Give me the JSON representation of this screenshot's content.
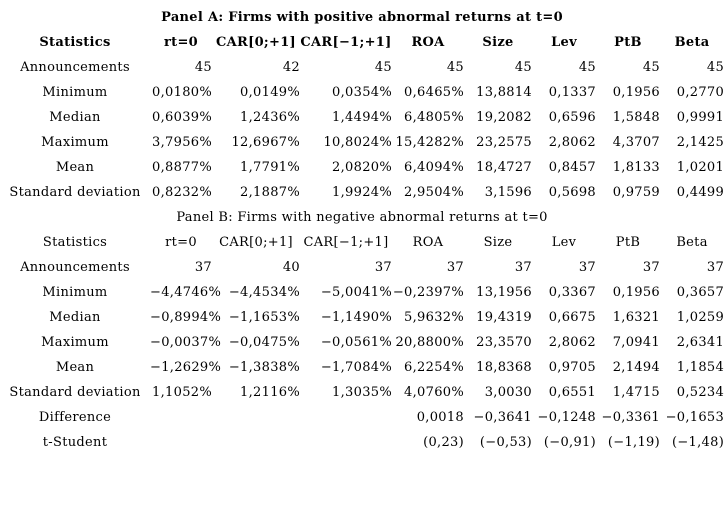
{
  "page": {
    "background_color": "#ffffff",
    "text_color": "#000000"
  },
  "panels": [
    {
      "name": "panel-a",
      "title": "Panel A: Firms with positive abnormal returns at t=0",
      "emphasis": "bold",
      "header": [
        "Statistics",
        "rt=0",
        "CAR[0;+1]",
        "CAR[−1;+1]",
        "ROA",
        "Size",
        "Lev",
        "PtB",
        "Beta"
      ],
      "rows": [
        {
          "label": "Announcements",
          "values": [
            "45",
            "42",
            "45",
            "45",
            "45",
            "45",
            "45",
            "45"
          ]
        },
        {
          "label": "Minimum",
          "values": [
            "0,0180%",
            "0,0149%",
            "0,0354%",
            "0,6465%",
            "13,8814",
            "0,1337",
            "0,1956",
            "0,2770"
          ]
        },
        {
          "label": "Median",
          "values": [
            "0,6039%",
            "1,2436%",
            "1,4494%",
            "6,4805%",
            "19,2082",
            "0,6596",
            "1,5848",
            "0,9991"
          ]
        },
        {
          "label": "Maximum",
          "values": [
            "3,7956%",
            "12,6967%",
            "10,8024%",
            "15,4282%",
            "23,2575",
            "2,8062",
            "4,3707",
            "2,1425"
          ]
        },
        {
          "label": "Mean",
          "values": [
            "0,8877%",
            "1,7791%",
            "2,0820%",
            "6,4094%",
            "18,4727",
            "0,8457",
            "1,8133",
            "1,0201"
          ]
        },
        {
          "label": "Standard deviation",
          "values": [
            "0,8232%",
            "2,1887%",
            "1,9924%",
            "2,9504%",
            "3,1596",
            "0,5698",
            "0,9759",
            "0,4499"
          ]
        }
      ]
    },
    {
      "name": "panel-b",
      "title": "Panel B: Firms with negative abnormal returns at t=0",
      "emphasis": "normal",
      "header": [
        "Statistics",
        "rt=0",
        "CAR[0;+1]",
        "CAR[−1;+1]",
        "ROA",
        "Size",
        "Lev",
        "PtB",
        "Beta"
      ],
      "rows": [
        {
          "label": "Announcements",
          "values": [
            "37",
            "40",
            "37",
            "37",
            "37",
            "37",
            "37",
            "37"
          ]
        },
        {
          "label": "Minimum",
          "values": [
            "−4,4746%",
            "−4,4534%",
            "−5,0041%",
            "−0,2397%",
            "13,1956",
            "0,3367",
            "0,1956",
            "0,3657"
          ]
        },
        {
          "label": "Median",
          "values": [
            "−0,8994%",
            "−1,1653%",
            "−1,1490%",
            "5,9632%",
            "19,4319",
            "0,6675",
            "1,6321",
            "1,0259"
          ]
        },
        {
          "label": "Maximum",
          "values": [
            "−0,0037%",
            "−0,0475%",
            "−0,0561%",
            "20,8800%",
            "23,3570",
            "2,8062",
            "7,0941",
            "2,6341"
          ]
        },
        {
          "label": "Mean",
          "values": [
            "−1,2629%",
            "−1,3838%",
            "−1,7084%",
            "6,2254%",
            "18,8368",
            "0,9705",
            "2,1494",
            "1,1854"
          ]
        },
        {
          "label": "Standard deviation",
          "values": [
            "1,1052%",
            "1,2116%",
            "1,3035%",
            "4,0760%",
            "3,0030",
            "0,6551",
            "1,4715",
            "0,5234"
          ]
        },
        {
          "label": "Difference",
          "values": [
            "",
            "",
            "",
            "0,0018",
            "−0,3641",
            "−0,1248",
            "−0,3361",
            "−0,1653"
          ]
        },
        {
          "label": "t-Student",
          "values": [
            "",
            "",
            "",
            "(0,23)",
            "(−0,53)",
            "(−0,91)",
            "(−1,19)",
            "(−1,48)"
          ]
        }
      ]
    }
  ]
}
